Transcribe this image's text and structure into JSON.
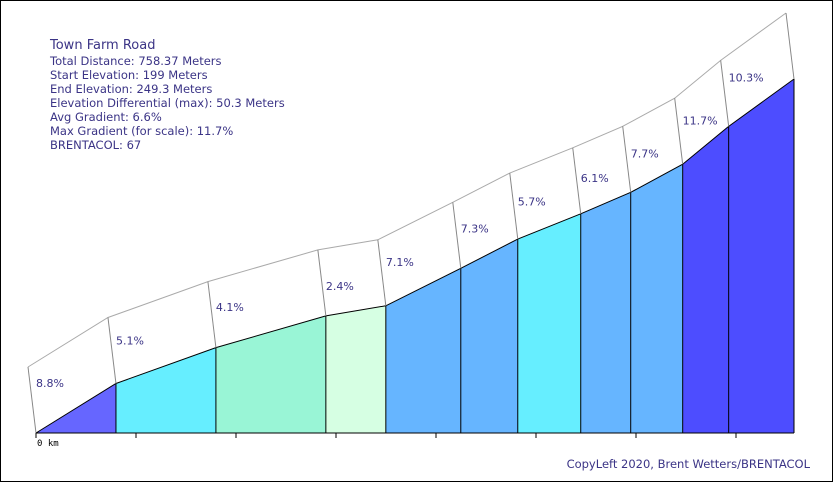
{
  "info": {
    "title": "Town Farm Road",
    "lines": [
      "Total Distance: 758.37 Meters",
      "Start Elevation: 199 Meters",
      "End Elevation: 249.3 Meters",
      "Elevation Differential (max): 50.3 Meters",
      "Avg Gradient: 6.6%",
      "Max Gradient (for scale): 11.7%",
      "BRENTACOL: 67"
    ]
  },
  "copyleft": "CopyLeft 2020, Brent Wetters/BRENTACOL",
  "chart_data": {
    "type": "area",
    "title": "Town Farm Road",
    "xlabel": "",
    "ylabel": "",
    "x_unit": "m",
    "y_unit": "m",
    "xlim": [
      0,
      758.37
    ],
    "ylim": [
      199,
      249.3
    ],
    "x_tick_labels": [
      "0 km"
    ],
    "segments": [
      {
        "x0": 0,
        "x1": 80,
        "gradient": 8.8,
        "label": "8.8%",
        "color": "#6666ff"
      },
      {
        "x0": 80,
        "x1": 180,
        "gradient": 5.1,
        "label": "5.1%",
        "color": "#66eeff"
      },
      {
        "x0": 180,
        "x1": 290,
        "gradient": 4.1,
        "label": "4.1%",
        "color": "#99f5d6"
      },
      {
        "x0": 290,
        "x1": 350,
        "gradient": 2.4,
        "label": "2.4%",
        "color": "#d6ffe3"
      },
      {
        "x0": 350,
        "x1": 425,
        "gradient": 7.1,
        "label": "7.1%",
        "color": "#66b5ff"
      },
      {
        "x0": 425,
        "x1": 482,
        "gradient": 7.3,
        "label": "7.3%",
        "color": "#66b5ff"
      },
      {
        "x0": 482,
        "x1": 545,
        "gradient": 5.7,
        "label": "5.7%",
        "color": "#66eeff"
      },
      {
        "x0": 545,
        "x1": 595,
        "gradient": 6.1,
        "label": "6.1%",
        "color": "#66b5ff"
      },
      {
        "x0": 595,
        "x1": 647,
        "gradient": 7.7,
        "label": "7.7%",
        "color": "#66b5ff"
      },
      {
        "x0": 647,
        "x1": 693,
        "gradient": 11.7,
        "label": "11.7%",
        "color": "#4d4dff"
      },
      {
        "x0": 693,
        "x1": 758.37,
        "gradient": 10.3,
        "label": "10.3%",
        "color": "#4d4dff"
      }
    ]
  }
}
